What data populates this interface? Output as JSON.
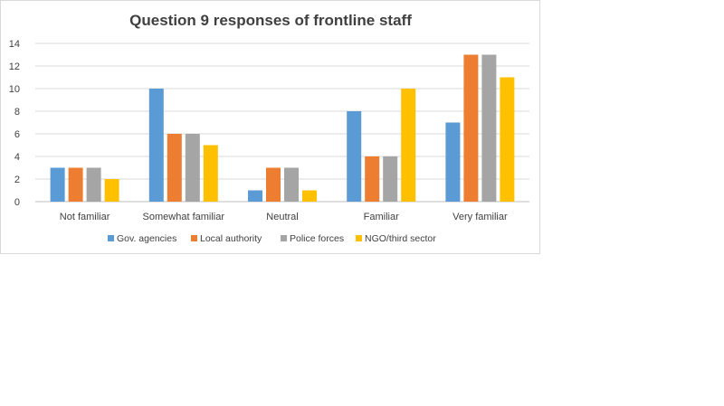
{
  "chart_data": {
    "type": "bar",
    "title": "Question 9 responses of frontline staff",
    "categories": [
      "Not familiar",
      "Somewhat familiar",
      "Neutral",
      "Familiar",
      "Very familiar"
    ],
    "series": [
      {
        "name": "Gov. agencies",
        "color": "#5b9bd5",
        "values": [
          3,
          10,
          1,
          8,
          7
        ]
      },
      {
        "name": "Local authority",
        "color": "#ed7d31",
        "values": [
          3,
          6,
          3,
          4,
          13
        ]
      },
      {
        "name": "Police forces",
        "color": "#a5a5a5",
        "values": [
          3,
          6,
          3,
          4,
          13
        ]
      },
      {
        "name": "NGO/third sector",
        "color": "#ffc000",
        "values": [
          2,
          5,
          1,
          10,
          11
        ]
      }
    ],
    "ylim": [
      0,
      14
    ],
    "yticks": [
      "0",
      "2",
      "4",
      "6",
      "8",
      "10",
      "12",
      "14"
    ],
    "xlabel": "",
    "ylabel": "",
    "grid": true,
    "legend": "bottom"
  }
}
